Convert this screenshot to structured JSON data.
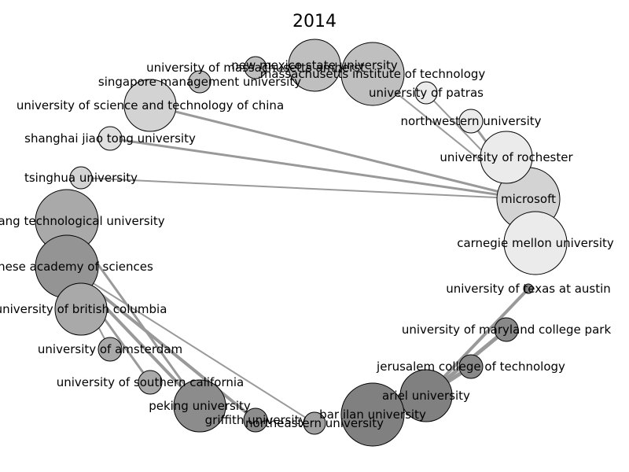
{
  "title": "2014",
  "edge_color": "#999999",
  "nodes": [
    {
      "id": "microsoft",
      "label": "microsoft",
      "color": "#d3d3d3"
    },
    {
      "id": "new_mexico",
      "label": "new mexico state university",
      "color": "#bfbfbf"
    },
    {
      "id": "umass",
      "label": "university of massachusetts amherst",
      "color": "#bfbfbf"
    },
    {
      "id": "mit",
      "label": "massachusetts institute of technology",
      "color": "#bfbfbf"
    },
    {
      "id": "smu",
      "label": "singapore management university",
      "color": "#bfbfbf"
    },
    {
      "id": "patras",
      "label": "university of patras",
      "color": "#ebebeb"
    },
    {
      "id": "ustc",
      "label": "university of science and technology of china",
      "color": "#d3d3d3"
    },
    {
      "id": "northwestern",
      "label": "northwestern university",
      "color": "#ebebeb"
    },
    {
      "id": "sjtu",
      "label": "shanghai jiao tong university",
      "color": "#e0e0e0"
    },
    {
      "id": "rochester",
      "label": "university of rochester",
      "color": "#ebebeb"
    },
    {
      "id": "tsinghua",
      "label": "tsinghua university",
      "color": "#d3d3d3"
    },
    {
      "id": "ntu",
      "label": "nanyang technological university",
      "color": "#a9a9a9"
    },
    {
      "id": "cmu",
      "label": "carnegie mellon university",
      "color": "#ebebeb"
    },
    {
      "id": "cas",
      "label": "chinese academy of sciences",
      "color": "#949494"
    },
    {
      "id": "utaustin",
      "label": "university of texas at austin",
      "color": "#888888"
    },
    {
      "id": "ubc",
      "label": "university of british columbia",
      "color": "#a9a9a9"
    },
    {
      "id": "umd",
      "label": "university of maryland college park",
      "color": "#888888"
    },
    {
      "id": "amsterdam",
      "label": "university of amsterdam",
      "color": "#a9a9a9"
    },
    {
      "id": "jct",
      "label": "jerusalem college of technology",
      "color": "#888888"
    },
    {
      "id": "usc",
      "label": "university of southern california",
      "color": "#a9a9a9"
    },
    {
      "id": "ariel",
      "label": "ariel university",
      "color": "#808080"
    },
    {
      "id": "peking",
      "label": "peking university",
      "color": "#8c8c8c"
    },
    {
      "id": "griffith",
      "label": "griffith university",
      "color": "#8c8c8c"
    },
    {
      "id": "northeastern",
      "label": "northeastern university",
      "color": "#a0a0a0"
    },
    {
      "id": "barilan",
      "label": "bar ilan university",
      "color": "#808080"
    }
  ],
  "edges": [
    {
      "source": "microsoft",
      "target": "ustc",
      "weight": 3
    },
    {
      "source": "microsoft",
      "target": "sjtu",
      "weight": 3
    },
    {
      "source": "microsoft",
      "target": "tsinghua",
      "weight": 2
    },
    {
      "source": "microsoft",
      "target": "mit",
      "weight": 2
    },
    {
      "source": "microsoft",
      "target": "patras",
      "weight": 2
    },
    {
      "source": "microsoft",
      "target": "northwestern",
      "weight": 3
    },
    {
      "source": "mit",
      "target": "umass",
      "weight": 2
    },
    {
      "source": "cas",
      "target": "peking",
      "weight": 4
    },
    {
      "source": "cas",
      "target": "griffith",
      "weight": 4
    },
    {
      "source": "cas",
      "target": "northeastern",
      "weight": 2
    },
    {
      "source": "cas",
      "target": "usc",
      "weight": 3
    },
    {
      "source": "cas",
      "target": "amsterdam",
      "weight": 2
    },
    {
      "source": "ntu",
      "target": "peking",
      "weight": 3
    },
    {
      "source": "ntu",
      "target": "ubc",
      "weight": 2
    },
    {
      "source": "ariel",
      "target": "utaustin",
      "weight": 4
    },
    {
      "source": "ariel",
      "target": "umd",
      "weight": 5
    },
    {
      "source": "ariel",
      "target": "jct",
      "weight": 5
    },
    {
      "source": "ariel",
      "target": "barilan",
      "weight": 4
    }
  ]
}
